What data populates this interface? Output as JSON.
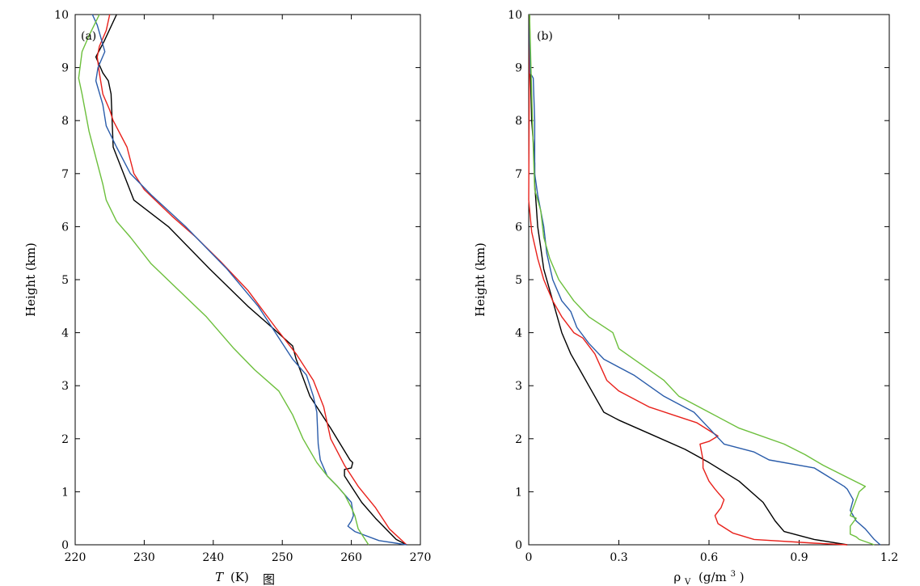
{
  "caption": "图",
  "chart_data": [
    {
      "type": "line",
      "panel_label": "(a)",
      "xlabel_italic": "T",
      "xlabel_unit": "(K)",
      "ylabel": "Height (km)",
      "xlim": [
        220,
        270
      ],
      "ylim": [
        0,
        10
      ],
      "xticks": [
        220,
        230,
        240,
        250,
        260,
        270
      ],
      "xtick_labels": [
        "220",
        "230",
        "240",
        "250",
        "260",
        "270"
      ],
      "yticks": [
        0,
        1,
        2,
        3,
        4,
        5,
        6,
        7,
        8,
        9,
        10
      ],
      "ytick_labels": [
        "0",
        "1",
        "2",
        "3",
        "4",
        "5",
        "6",
        "7",
        "8",
        "9",
        "10"
      ],
      "series": [
        {
          "name": "black",
          "color": "#000000",
          "points": [
            [
              268.0,
              0
            ],
            [
              266.5,
              0.1
            ],
            [
              263.5,
              0.5
            ],
            [
              261.5,
              0.8
            ],
            [
              259.0,
              1.3
            ],
            [
              259.0,
              1.42
            ],
            [
              260.0,
              1.45
            ],
            [
              260.2,
              1.55
            ],
            [
              259.8,
              1.6
            ],
            [
              257.0,
              2.2
            ],
            [
              254.0,
              2.8
            ],
            [
              252.0,
              3.5
            ],
            [
              251.5,
              3.75
            ],
            [
              248.5,
              4.1
            ],
            [
              245.0,
              4.5
            ],
            [
              239.5,
              5.2
            ],
            [
              233.5,
              6.0
            ],
            [
              228.5,
              6.5
            ],
            [
              227.0,
              7.0
            ],
            [
              225.5,
              7.5
            ],
            [
              225.2,
              8.5
            ],
            [
              224.8,
              8.75
            ],
            [
              224.0,
              8.9
            ],
            [
              223.0,
              9.2
            ],
            [
              224.2,
              9.5
            ],
            [
              226.0,
              10.0
            ]
          ]
        },
        {
          "name": "red",
          "color": "#e8211b",
          "points": [
            [
              268.0,
              0
            ],
            [
              265.5,
              0.3
            ],
            [
              263.5,
              0.7
            ],
            [
              261.0,
              1.1
            ],
            [
              259.0,
              1.5
            ],
            [
              257.0,
              2.0
            ],
            [
              256.0,
              2.6
            ],
            [
              254.5,
              3.1
            ],
            [
              252.0,
              3.6
            ],
            [
              249.0,
              4.1
            ],
            [
              245.0,
              4.8
            ],
            [
              241.0,
              5.35
            ],
            [
              237.5,
              5.8
            ],
            [
              234.0,
              6.2
            ],
            [
              230.0,
              6.7
            ],
            [
              228.5,
              7.0
            ],
            [
              227.5,
              7.5
            ],
            [
              225.5,
              8.0
            ],
            [
              225.0,
              8.2
            ],
            [
              224.0,
              8.5
            ],
            [
              223.5,
              8.9
            ],
            [
              223.2,
              9.2
            ],
            [
              223.5,
              9.4
            ],
            [
              224.5,
              9.7
            ],
            [
              225.0,
              10.0
            ]
          ]
        },
        {
          "name": "blue",
          "color": "#2a5caa",
          "points": [
            [
              268.0,
              0
            ],
            [
              264.0,
              0.08
            ],
            [
              260.5,
              0.25
            ],
            [
              259.5,
              0.35
            ],
            [
              260.0,
              0.45
            ],
            [
              260.3,
              0.55
            ],
            [
              260.0,
              0.8
            ],
            [
              258.0,
              1.1
            ],
            [
              256.5,
              1.3
            ],
            [
              255.5,
              1.6
            ],
            [
              255.2,
              1.9
            ],
            [
              255.0,
              2.5
            ],
            [
              254.5,
              2.8
            ],
            [
              253.5,
              3.2
            ],
            [
              251.5,
              3.5
            ],
            [
              249.0,
              4.0
            ],
            [
              246.5,
              4.5
            ],
            [
              242.0,
              5.2
            ],
            [
              236.0,
              6.0
            ],
            [
              231.0,
              6.6
            ],
            [
              228.0,
              7.0
            ],
            [
              226.0,
              7.5
            ],
            [
              224.5,
              7.9
            ],
            [
              224.0,
              8.3
            ],
            [
              223.0,
              8.75
            ],
            [
              223.3,
              9.0
            ],
            [
              224.3,
              9.3
            ],
            [
              223.2,
              9.8
            ],
            [
              222.5,
              10.0
            ]
          ]
        },
        {
          "name": "green",
          "color": "#6cbf3c",
          "points": [
            [
              262.5,
              0
            ],
            [
              261.0,
              0.3
            ],
            [
              260.5,
              0.55
            ],
            [
              260.0,
              0.7
            ],
            [
              259.0,
              0.95
            ],
            [
              258.0,
              1.1
            ],
            [
              256.5,
              1.3
            ],
            [
              255.0,
              1.55
            ],
            [
              253.0,
              2.0
            ],
            [
              251.5,
              2.45
            ],
            [
              249.5,
              2.9
            ],
            [
              246.0,
              3.3
            ],
            [
              243.0,
              3.7
            ],
            [
              239.0,
              4.3
            ],
            [
              235.0,
              4.8
            ],
            [
              231.0,
              5.3
            ],
            [
              228.0,
              5.8
            ],
            [
              226.0,
              6.1
            ],
            [
              224.5,
              6.5
            ],
            [
              224.0,
              6.8
            ],
            [
              223.0,
              7.3
            ],
            [
              222.0,
              7.8
            ],
            [
              221.0,
              8.5
            ],
            [
              220.5,
              8.8
            ],
            [
              221.0,
              9.3
            ],
            [
              222.0,
              9.6
            ],
            [
              223.5,
              10.0
            ]
          ]
        }
      ]
    },
    {
      "type": "line",
      "panel_label": "(b)",
      "xlabel": "ρ",
      "xlabel_subscript": "V",
      "xlabel_unit": "(g/m",
      "xlabel_superscript": "3",
      "xlabel_close": ")",
      "ylabel": "Height (km)",
      "xlim": [
        0,
        1.2
      ],
      "ylim": [
        0,
        10
      ],
      "xticks": [
        0,
        0.3,
        0.6,
        0.9,
        1.2
      ],
      "xtick_labels": [
        "0",
        "0.3",
        "0.6",
        "0.9",
        "1.2"
      ],
      "yticks": [
        0,
        1,
        2,
        3,
        4,
        5,
        6,
        7,
        8,
        9,
        10
      ],
      "ytick_labels": [
        "0",
        "1",
        "2",
        "3",
        "4",
        "5",
        "6",
        "7",
        "8",
        "9",
        "10"
      ],
      "series": [
        {
          "name": "black",
          "color": "#000000",
          "points": [
            [
              1.06,
              0
            ],
            [
              0.95,
              0.1
            ],
            [
              0.85,
              0.25
            ],
            [
              0.82,
              0.45
            ],
            [
              0.78,
              0.8
            ],
            [
              0.7,
              1.2
            ],
            [
              0.6,
              1.55
            ],
            [
              0.52,
              1.8
            ],
            [
              0.4,
              2.1
            ],
            [
              0.3,
              2.35
            ],
            [
              0.25,
              2.5
            ],
            [
              0.2,
              3.0
            ],
            [
              0.17,
              3.3
            ],
            [
              0.14,
              3.6
            ],
            [
              0.11,
              4.0
            ],
            [
              0.09,
              4.4
            ],
            [
              0.07,
              4.8
            ],
            [
              0.05,
              5.2
            ],
            [
              0.04,
              5.6
            ],
            [
              0.03,
              6.0
            ],
            [
              0.025,
              6.4
            ],
            [
              0.02,
              6.8
            ],
            [
              0.02,
              7.2
            ],
            [
              0.015,
              7.6
            ],
            [
              0.01,
              8.0
            ],
            [
              0.005,
              9.0
            ],
            [
              0.003,
              10.0
            ]
          ]
        },
        {
          "name": "red",
          "color": "#e8211b",
          "points": [
            [
              1.06,
              0
            ],
            [
              0.95,
              0.03
            ],
            [
              0.75,
              0.1
            ],
            [
              0.68,
              0.22
            ],
            [
              0.63,
              0.4
            ],
            [
              0.62,
              0.55
            ],
            [
              0.64,
              0.7
            ],
            [
              0.65,
              0.85
            ],
            [
              0.62,
              1.05
            ],
            [
              0.6,
              1.2
            ],
            [
              0.58,
              1.45
            ],
            [
              0.58,
              1.6
            ],
            [
              0.57,
              1.9
            ],
            [
              0.6,
              1.95
            ],
            [
              0.63,
              2.05
            ],
            [
              0.56,
              2.3
            ],
            [
              0.48,
              2.45
            ],
            [
              0.4,
              2.6
            ],
            [
              0.3,
              2.9
            ],
            [
              0.26,
              3.1
            ],
            [
              0.22,
              3.6
            ],
            [
              0.18,
              3.9
            ],
            [
              0.15,
              4.0
            ],
            [
              0.11,
              4.3
            ],
            [
              0.08,
              4.6
            ],
            [
              0.05,
              5.0
            ],
            [
              0.03,
              5.4
            ],
            [
              0.01,
              5.9
            ],
            [
              0.0,
              6.5
            ],
            [
              0.003,
              10.0
            ]
          ]
        },
        {
          "name": "blue",
          "color": "#2a5caa",
          "points": [
            [
              1.17,
              0
            ],
            [
              1.15,
              0.1
            ],
            [
              1.12,
              0.3
            ],
            [
              1.09,
              0.45
            ],
            [
              1.07,
              0.65
            ],
            [
              1.08,
              0.85
            ],
            [
              1.07,
              0.95
            ],
            [
              1.06,
              1.05
            ],
            [
              1.05,
              1.1
            ],
            [
              0.95,
              1.45
            ],
            [
              0.8,
              1.6
            ],
            [
              0.75,
              1.75
            ],
            [
              0.65,
              1.9
            ],
            [
              0.6,
              2.2
            ],
            [
              0.55,
              2.5
            ],
            [
              0.45,
              2.8
            ],
            [
              0.35,
              3.2
            ],
            [
              0.25,
              3.5
            ],
            [
              0.2,
              3.8
            ],
            [
              0.16,
              4.1
            ],
            [
              0.14,
              4.4
            ],
            [
              0.11,
              4.6
            ],
            [
              0.08,
              5.0
            ],
            [
              0.06,
              5.5
            ],
            [
              0.05,
              6.0
            ],
            [
              0.03,
              6.6
            ],
            [
              0.02,
              7.0
            ],
            [
              0.02,
              8.0
            ],
            [
              0.015,
              8.8
            ],
            [
              0.005,
              8.9
            ],
            [
              0.003,
              9.5
            ],
            [
              0.003,
              10.0
            ]
          ]
        },
        {
          "name": "green",
          "color": "#6cbf3c",
          "points": [
            [
              1.15,
              0
            ],
            [
              1.1,
              0.1
            ],
            [
              1.09,
              0.15
            ],
            [
              1.07,
              0.2
            ],
            [
              1.07,
              0.35
            ],
            [
              1.09,
              0.5
            ],
            [
              1.07,
              0.55
            ],
            [
              1.08,
              0.7
            ],
            [
              1.09,
              0.85
            ],
            [
              1.1,
              1.0
            ],
            [
              1.12,
              1.1
            ],
            [
              1.05,
              1.3
            ],
            [
              0.98,
              1.5
            ],
            [
              0.92,
              1.7
            ],
            [
              0.85,
              1.9
            ],
            [
              0.7,
              2.2
            ],
            [
              0.6,
              2.5
            ],
            [
              0.5,
              2.8
            ],
            [
              0.45,
              3.1
            ],
            [
              0.35,
              3.5
            ],
            [
              0.3,
              3.7
            ],
            [
              0.28,
              4.0
            ],
            [
              0.2,
              4.3
            ],
            [
              0.15,
              4.6
            ],
            [
              0.1,
              5.0
            ],
            [
              0.07,
              5.4
            ],
            [
              0.05,
              5.8
            ],
            [
              0.04,
              6.3
            ],
            [
              0.02,
              6.7
            ],
            [
              0.015,
              7.5
            ],
            [
              0.01,
              8.5
            ],
            [
              0.005,
              9.5
            ],
            [
              0.003,
              10.0
            ]
          ]
        }
      ]
    }
  ]
}
